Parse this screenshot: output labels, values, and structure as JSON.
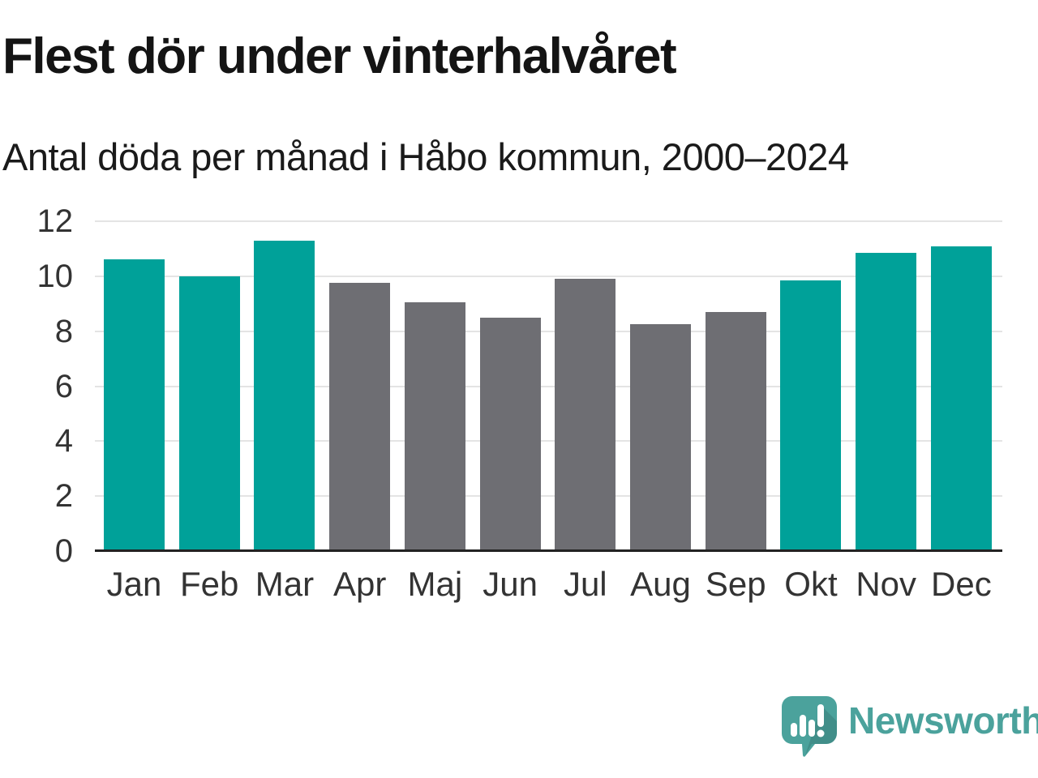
{
  "header": {
    "title": "Flest dör under vinterhalvåret",
    "subtitle": "Antal döda per månad i Håbo kommun, 2000–2024"
  },
  "chart_data": {
    "type": "bar",
    "title": "Flest dör under vinterhalvåret",
    "subtitle": "Antal döda per månad i Håbo kommun, 2000–2024",
    "categories": [
      "Jan",
      "Feb",
      "Mar",
      "Apr",
      "Maj",
      "Jun",
      "Jul",
      "Aug",
      "Sep",
      "Okt",
      "Nov",
      "Dec"
    ],
    "values": [
      10.6,
      10.0,
      11.3,
      9.75,
      9.05,
      8.5,
      9.9,
      8.25,
      8.7,
      9.85,
      10.85,
      11.1
    ],
    "highlighted_categories": [
      "Jan",
      "Feb",
      "Mar",
      "Okt",
      "Nov",
      "Dec"
    ],
    "xlabel": "",
    "ylabel": "",
    "ylim": [
      0,
      12
    ],
    "yticks": [
      0,
      2,
      4,
      6,
      8,
      10,
      12
    ],
    "grid": true,
    "legend": false,
    "colors": {
      "highlight": "#00a199",
      "default": "#6e6e73",
      "gridline": "#e4e4e4",
      "axis": "#222222"
    }
  },
  "footer": {
    "brand": "Newsworthy",
    "brand_color": "#4ba29c"
  }
}
